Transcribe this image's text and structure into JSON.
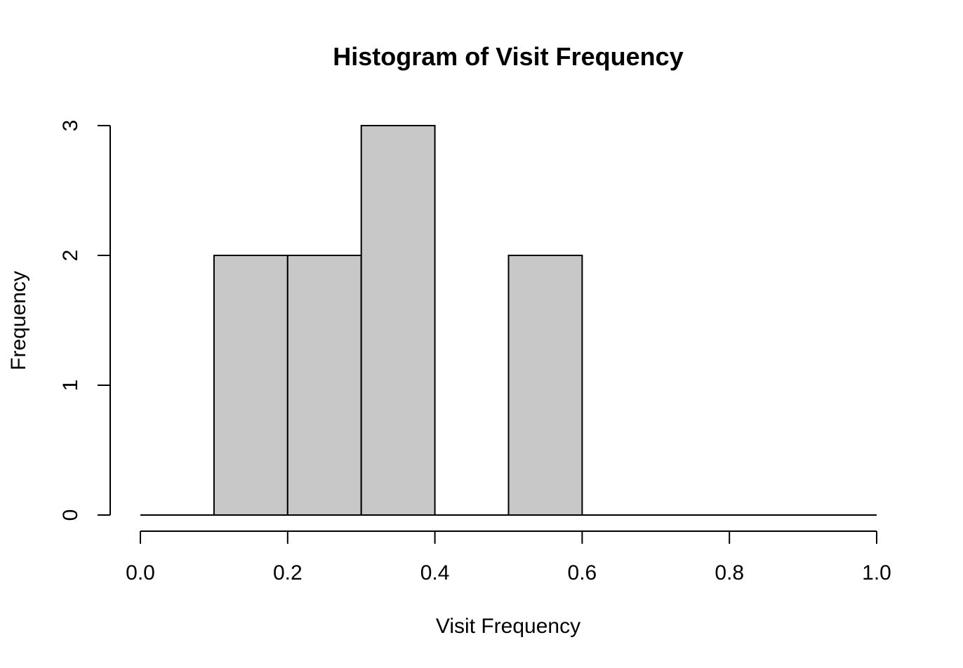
{
  "chart_data": {
    "type": "bar",
    "title": "Histogram of Visit Frequency",
    "xlabel": "Visit Frequency",
    "ylabel": "Frequency",
    "xlim": [
      0,
      1
    ],
    "ylim": [
      0,
      3
    ],
    "x_ticks": [
      "0.0",
      "0.2",
      "0.4",
      "0.6",
      "0.8",
      "1.0"
    ],
    "y_ticks": [
      "0",
      "1",
      "2",
      "3"
    ],
    "bins": [
      {
        "start": 0.0,
        "end": 0.1,
        "count": 0
      },
      {
        "start": 0.1,
        "end": 0.2,
        "count": 2
      },
      {
        "start": 0.2,
        "end": 0.3,
        "count": 2
      },
      {
        "start": 0.3,
        "end": 0.4,
        "count": 3
      },
      {
        "start": 0.4,
        "end": 0.5,
        "count": 0
      },
      {
        "start": 0.5,
        "end": 0.6,
        "count": 2
      },
      {
        "start": 0.6,
        "end": 0.7,
        "count": 0
      },
      {
        "start": 0.7,
        "end": 0.8,
        "count": 0
      },
      {
        "start": 0.8,
        "end": 0.9,
        "count": 0
      },
      {
        "start": 0.9,
        "end": 1.0,
        "count": 0
      }
    ],
    "bar_color": "#c8c8c8",
    "edge_color": "#000000",
    "grid": false,
    "legend": "none"
  }
}
